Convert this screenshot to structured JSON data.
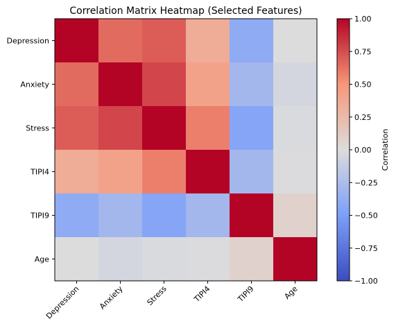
{
  "chart_data": {
    "type": "heatmap",
    "title": "Correlation Matrix Heatmap (Selected Features)",
    "x_labels": [
      "Depression",
      "Anxiety",
      "Stress",
      "TIPI4",
      "TIPI9",
      "Age"
    ],
    "y_labels": [
      "Depression",
      "Anxiety",
      "Stress",
      "TIPI4",
      "TIPI9",
      "Age"
    ],
    "values": [
      [
        1.0,
        0.65,
        0.7,
        0.35,
        -0.4,
        0.0
      ],
      [
        0.65,
        1.0,
        0.78,
        0.42,
        -0.3,
        -0.05
      ],
      [
        0.7,
        0.78,
        1.0,
        0.58,
        -0.45,
        -0.02
      ],
      [
        0.35,
        0.42,
        0.58,
        1.0,
        -0.3,
        -0.01
      ],
      [
        -0.4,
        -0.3,
        -0.45,
        -0.3,
        1.0,
        0.08
      ],
      [
        0.0,
        -0.05,
        -0.02,
        -0.01,
        0.08,
        1.0
      ]
    ],
    "colormap": "coolwarm",
    "vmin": -1.0,
    "vmax": 1.0,
    "colorbar": {
      "label": "Correlation",
      "ticks": [
        "1.00",
        "0.75",
        "0.50",
        "0.25",
        "0.00",
        "−0.25",
        "−0.50",
        "−0.75",
        "−1.00"
      ],
      "tick_values": [
        1.0,
        0.75,
        0.5,
        0.25,
        0.0,
        -0.25,
        -0.5,
        -0.75,
        -1.0
      ]
    },
    "grid": false
  }
}
